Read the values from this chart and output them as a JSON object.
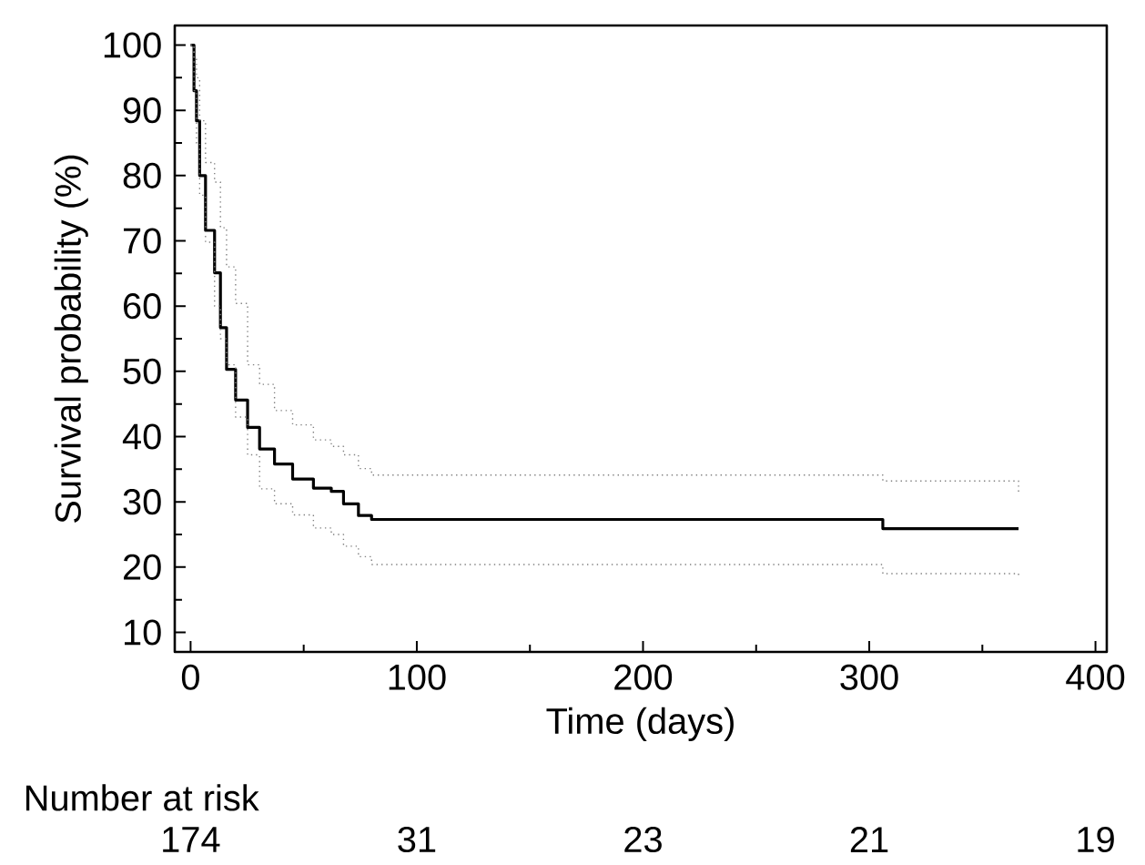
{
  "chart_data": {
    "type": "step",
    "xlabel": "Time (days)",
    "ylabel": "Survival probability (%)",
    "xlim": [
      -7,
      405
    ],
    "ylim": [
      7,
      103
    ],
    "xticks": [
      0,
      100,
      200,
      300,
      400
    ],
    "yticks": [
      10,
      20,
      30,
      40,
      50,
      60,
      70,
      80,
      90,
      100
    ],
    "grid": false,
    "marker": "none",
    "series": [
      {
        "color": "#000000",
        "line_style": "solid",
        "x": [
          0,
          1.5,
          2.6,
          4,
          6.6,
          10.6,
          13.2,
          15.9,
          19.9,
          25.2,
          30.5,
          37.1,
          45.1,
          54.3,
          62.2,
          67.6,
          74.2,
          80,
          306,
          366
        ],
        "values": [
          100,
          93,
          88.4,
          80,
          71.6,
          65.1,
          56.7,
          50.3,
          45.6,
          41.4,
          38.1,
          35.8,
          33.5,
          32.1,
          31.6,
          29.7,
          27.9,
          27.3,
          25.9,
          25.9
        ]
      },
      {
        "color": "#808080",
        "line_style": "dotted",
        "x": [
          0,
          1.5,
          2.6,
          4,
          6.6,
          10.6,
          13.2,
          15.9,
          19.9,
          25.2,
          30.5,
          37.1,
          45.1,
          54.3,
          62.2,
          67.6,
          74.2,
          80,
          306,
          366
        ],
        "values": [
          100,
          93,
          85,
          77,
          69.8,
          60,
          55,
          51,
          43,
          37.2,
          32,
          29.7,
          28,
          26,
          25,
          23.2,
          21.6,
          20.4,
          19,
          18.5
        ]
      },
      {
        "color": "#808080",
        "line_style": "dotted",
        "x": [
          0,
          1.5,
          2.6,
          4,
          6.6,
          10.6,
          13.2,
          15.9,
          19.9,
          25.2,
          30.5,
          37.1,
          45.1,
          54.3,
          62.2,
          67.6,
          74.2,
          80,
          306,
          366
        ],
        "values": [
          100,
          98,
          95,
          88.4,
          82,
          79,
          72,
          66,
          60.4,
          51,
          48,
          44,
          41.8,
          39.5,
          38.5,
          37.2,
          35.1,
          34.1,
          33.2,
          31.5
        ]
      }
    ],
    "annotations": [
      "Number at risk",
      "174",
      "31",
      "23",
      "21",
      "19"
    ]
  }
}
